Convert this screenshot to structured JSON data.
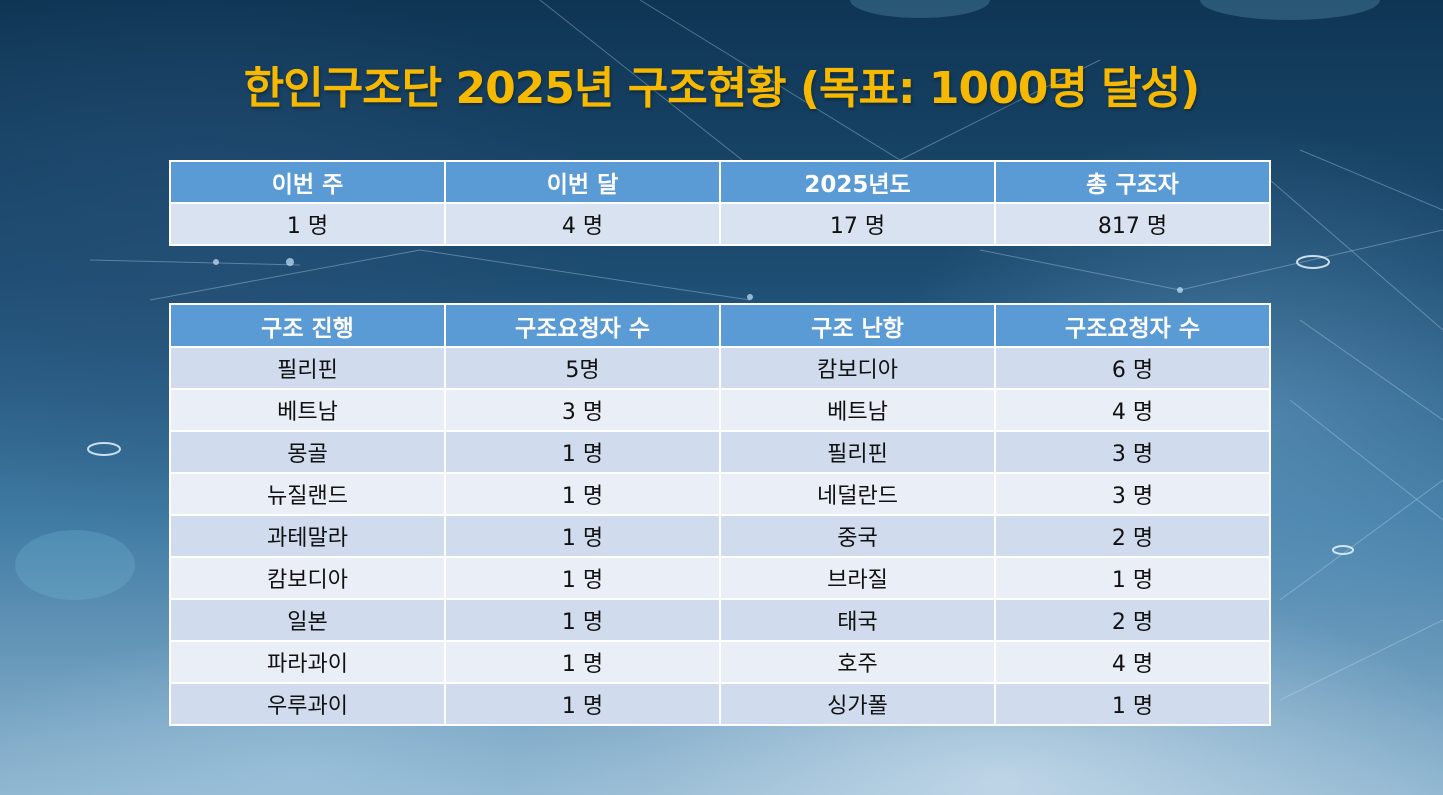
{
  "title": "한인구조단 2025년 구조현황 (목표: 1000명 달성)",
  "summary": {
    "headers": [
      "이번 주",
      "이번 달",
      "2025년도",
      "총 구조자"
    ],
    "values": [
      "1 명",
      "4 명",
      "17 명",
      "817 명"
    ]
  },
  "rescue": {
    "headers": [
      "구조 진행",
      "구조요청자 수",
      "구조 난항",
      "구조요청자 수"
    ],
    "rows": [
      [
        "필리핀",
        "5명",
        "캄보디아",
        "6 명"
      ],
      [
        "베트남",
        "3 명",
        "베트남",
        "4 명"
      ],
      [
        "몽골",
        "1 명",
        "필리핀",
        "3 명"
      ],
      [
        "뉴질랜드",
        "1 명",
        "네덜란드",
        "3 명"
      ],
      [
        "과테말라",
        "1 명",
        "중국",
        "2 명"
      ],
      [
        "캄보디아",
        "1 명",
        "브라질",
        "1 명"
      ],
      [
        "일본",
        "1 명",
        "태국",
        "2 명"
      ],
      [
        "파라과이",
        "1 명",
        "호주",
        "4 명"
      ],
      [
        "우루과이",
        "1 명",
        "싱가폴",
        "1 명"
      ]
    ]
  },
  "colors": {
    "title": "#f6b900",
    "header_bg": "#5b9bd5",
    "row_dark": "#d0dbee",
    "row_light": "#e9eef7"
  }
}
